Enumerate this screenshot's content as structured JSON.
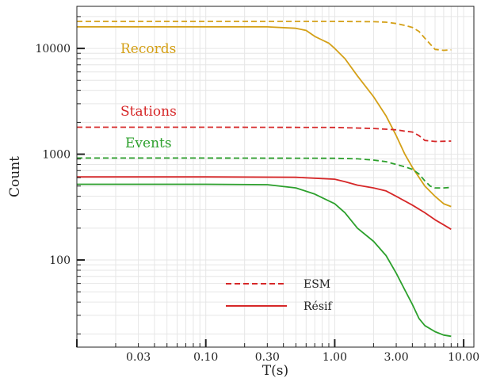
{
  "chart_data": {
    "type": "line",
    "xlabel": "T(s)",
    "ylabel": "Count",
    "x_scale": "log",
    "y_scale": "log",
    "xlim": [
      0.01,
      12
    ],
    "ylim": [
      15,
      25000
    ],
    "x_ticks": [
      {
        "value": 0.03,
        "label": "0.03"
      },
      {
        "value": 0.1,
        "label": "0.10"
      },
      {
        "value": 0.3,
        "label": "0.30"
      },
      {
        "value": 1,
        "label": "1.00"
      },
      {
        "value": 3,
        "label": "3.00"
      },
      {
        "value": 10,
        "label": "10.00"
      }
    ],
    "y_ticks": [
      {
        "value": 100,
        "label": "100"
      },
      {
        "value": 1000,
        "label": "1000"
      },
      {
        "value": 10000,
        "label": "10000"
      }
    ],
    "grid": true,
    "legend": {
      "position": "lower-center",
      "entries": [
        {
          "label": "ESM",
          "style": "dashed"
        },
        {
          "label": "Résif",
          "style": "solid"
        }
      ]
    },
    "colors": {
      "records": "#d4a017",
      "stations": "#d62728",
      "events": "#2ca02c",
      "legend": "#d62728",
      "grid": "#e6e6e6"
    },
    "annotations": [
      {
        "text": "Records",
        "color_key": "records"
      },
      {
        "text": "Stations",
        "color_key": "stations"
      },
      {
        "text": "Events",
        "color_key": "events"
      }
    ],
    "series": [
      {
        "color_key": "records",
        "dataset": "ESM",
        "dash": true,
        "x": [
          0.01,
          0.1,
          1,
          2,
          2.5,
          3,
          3.5,
          4,
          4.5,
          5,
          5.5,
          6,
          7,
          8
        ],
        "y": [
          18000,
          18000,
          18000,
          17900,
          17700,
          17200,
          16500,
          15800,
          14500,
          12500,
          11000,
          9800,
          9600,
          9700
        ]
      },
      {
        "color_key": "records",
        "dataset": "Résif",
        "dash": false,
        "x": [
          0.01,
          0.1,
          0.3,
          0.5,
          0.6,
          0.7,
          0.8,
          0.9,
          1.0,
          1.2,
          1.5,
          2.0,
          2.5,
          3.0,
          3.5,
          4.0,
          5.0,
          6.0,
          7.0,
          8.0
        ],
        "y": [
          16000,
          16000,
          16000,
          15500,
          14800,
          13000,
          12000,
          11200,
          10000,
          8000,
          5500,
          3500,
          2300,
          1500,
          1000,
          750,
          500,
          400,
          340,
          320
        ]
      },
      {
        "color_key": "stations",
        "dataset": "ESM",
        "dash": true,
        "x": [
          0.01,
          0.1,
          1,
          2,
          3,
          3.5,
          4,
          4.5,
          5,
          6,
          8
        ],
        "y": [
          1800,
          1800,
          1790,
          1750,
          1700,
          1650,
          1620,
          1500,
          1350,
          1320,
          1330
        ]
      },
      {
        "color_key": "stations",
        "dataset": "Résif",
        "dash": false,
        "x": [
          0.01,
          0.1,
          0.5,
          1.0,
          1.2,
          1.5,
          2.0,
          2.5,
          3.0,
          4.0,
          5.0,
          6.0,
          7.0,
          8.0
        ],
        "y": [
          610,
          610,
          605,
          580,
          550,
          510,
          480,
          450,
          400,
          330,
          280,
          240,
          215,
          195
        ]
      },
      {
        "color_key": "events",
        "dataset": "ESM",
        "dash": true,
        "x": [
          0.01,
          0.1,
          1,
          1.5,
          2.0,
          2.5,
          3.0,
          3.5,
          4.0,
          4.5,
          5.0,
          5.5,
          6.0,
          7.0,
          8.0
        ],
        "y": [
          920,
          920,
          915,
          905,
          880,
          850,
          800,
          760,
          720,
          650,
          560,
          500,
          480,
          480,
          485
        ]
      },
      {
        "color_key": "events",
        "dataset": "Résif",
        "dash": false,
        "x": [
          0.01,
          0.1,
          0.3,
          0.5,
          0.7,
          1.0,
          1.2,
          1.5,
          2.0,
          2.5,
          3.0,
          3.5,
          4.0,
          4.5,
          5.0,
          6.0,
          7.0,
          8.0
        ],
        "y": [
          520,
          520,
          515,
          480,
          420,
          340,
          280,
          200,
          150,
          110,
          75,
          52,
          38,
          28,
          24,
          21,
          19.5,
          19
        ]
      }
    ]
  }
}
